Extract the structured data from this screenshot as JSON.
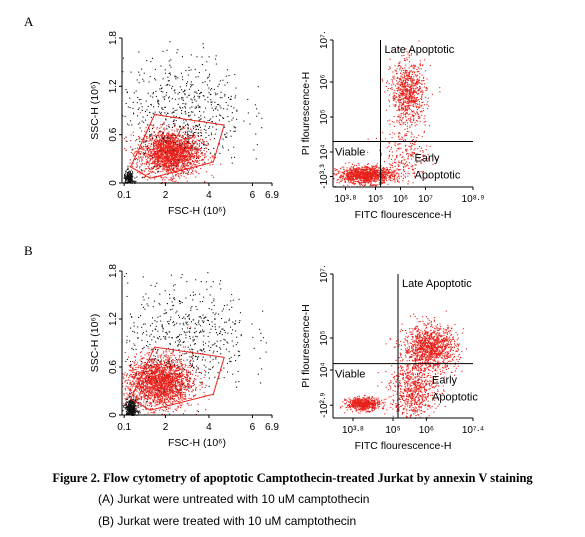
{
  "figure": {
    "caption_title": "Figure 2. Flow cytometry of apoptotic Camptothecin-treated Jurkat by annexin V staining",
    "caption_lines": [
      "(A)  Jurkat were untreated with 10 uM camptothecin",
      "(B)  Jurkat were treated with 10 uM camptothecin"
    ]
  },
  "colors": {
    "events": "#e8211b",
    "gate": "#e8211b",
    "ungated": "#111111",
    "axis": "#000000"
  },
  "chart_data": [
    {
      "panel": "A",
      "type": "scatter",
      "title": "",
      "xlabel": "FSC-H  (10⁶)",
      "ylabel": "SSC-H  (10⁶)",
      "x_ticks": [
        "0.1",
        "2",
        "4",
        "6",
        "6.9"
      ],
      "x_tick_values": [
        0.1,
        2,
        4,
        6,
        6.9
      ],
      "y_ticks": [
        "0",
        "0.6",
        "1.2",
        "1.8"
      ],
      "y_tick_values": [
        0,
        0.6,
        1.2,
        1.8
      ],
      "xlim": [
        0,
        6.9
      ],
      "ylim": [
        0,
        1.8
      ],
      "gate_polygon": [
        [
          0.4,
          0.2
        ],
        [
          1.5,
          0.85
        ],
        [
          4.7,
          0.72
        ],
        [
          4.2,
          0.26
        ],
        [
          1.3,
          0.06
        ]
      ],
      "series": [
        {
          "color": "red",
          "cluster": {
            "x_center": 2.2,
            "y_center": 0.38,
            "x_sd": 0.7,
            "y_sd": 0.14,
            "n": 2200
          }
        },
        {
          "color": "black",
          "cluster": {
            "x_center": 2.8,
            "y_center": 0.9,
            "x_sd": 1.4,
            "y_sd": 0.35,
            "n": 600
          }
        },
        {
          "color": "black",
          "cluster": {
            "x_center": 0.3,
            "y_center": 0.05,
            "x_sd": 0.12,
            "y_sd": 0.05,
            "n": 250
          }
        }
      ]
    },
    {
      "panel": "A",
      "type": "scatter",
      "title": "",
      "xlabel": "FITC flourescence-H",
      "ylabel": "PI flourescence-H",
      "x_ticks": [
        "10³·⁸",
        "10⁵",
        "10⁶",
        "10⁷",
        "10⁸·⁹"
      ],
      "x_tick_values": [
        3.8,
        5,
        6,
        7,
        8.9
      ],
      "y_ticks": [
        "-10³·³",
        "10⁴",
        "10⁵",
        "10⁶",
        "10⁷·"
      ],
      "y_tick_values": [
        3.3,
        4,
        5,
        6,
        7.2
      ],
      "xlim": [
        3.3,
        8.9
      ],
      "ylim": [
        3.0,
        7.2
      ],
      "quadrant_gates": {
        "x": 5.2,
        "y": 4.3
      },
      "quadrant_labels": {
        "upper_right": "Late Apoptotic",
        "lower_left": "Viable",
        "lower_right_line1": "Early",
        "lower_right_line2": "Apoptotic"
      },
      "series": [
        {
          "color": "red",
          "cluster": {
            "x_center": 4.6,
            "y_center": 3.35,
            "x_sd": 0.55,
            "y_sd": 0.12,
            "n": 1200
          }
        },
        {
          "color": "red",
          "cluster": {
            "x_center": 6.3,
            "y_center": 5.7,
            "x_sd": 0.35,
            "y_sd": 0.45,
            "n": 800
          }
        },
        {
          "color": "red",
          "cluster": {
            "x_center": 6.2,
            "y_center": 3.9,
            "x_sd": 0.5,
            "y_sd": 0.4,
            "n": 250
          }
        }
      ]
    },
    {
      "panel": "B",
      "type": "scatter",
      "title": "",
      "xlabel": "FSC-H  (10⁶)",
      "ylabel": "SSC-H  (10⁶)",
      "x_ticks": [
        "0.1",
        "2",
        "4",
        "6",
        "6.9"
      ],
      "x_tick_values": [
        0.1,
        2,
        4,
        6,
        6.9
      ],
      "y_ticks": [
        "0",
        "0.6",
        "1.2",
        "1.8"
      ],
      "y_tick_values": [
        0,
        0.6,
        1.2,
        1.8
      ],
      "xlim": [
        0,
        6.9
      ],
      "ylim": [
        0,
        1.8
      ],
      "gate_polygon": [
        [
          0.4,
          0.2
        ],
        [
          1.5,
          0.85
        ],
        [
          4.7,
          0.72
        ],
        [
          4.2,
          0.26
        ],
        [
          1.3,
          0.06
        ]
      ],
      "series": [
        {
          "color": "red",
          "cluster": {
            "x_center": 1.7,
            "y_center": 0.42,
            "x_sd": 0.75,
            "y_sd": 0.16,
            "n": 2200
          }
        },
        {
          "color": "black",
          "cluster": {
            "x_center": 3.0,
            "y_center": 1.0,
            "x_sd": 1.4,
            "y_sd": 0.35,
            "n": 550
          }
        },
        {
          "color": "black",
          "cluster": {
            "x_center": 0.4,
            "y_center": 0.08,
            "x_sd": 0.15,
            "y_sd": 0.06,
            "n": 400
          }
        }
      ]
    },
    {
      "panel": "B",
      "type": "scatter",
      "title": "",
      "xlabel": "FITC flourescence-H",
      "ylabel": "PI flourescence-H",
      "x_ticks": [
        "10³·⁸",
        "10⁵",
        "10⁶",
        "10⁷·⁴"
      ],
      "x_tick_values": [
        3.8,
        5,
        6,
        7.4
      ],
      "y_ticks": [
        "-10²·⁹",
        "10⁴",
        "10⁵",
        "10⁷·"
      ],
      "y_tick_values": [
        2.9,
        4,
        5,
        7.0
      ],
      "xlim": [
        3.2,
        7.4
      ],
      "ylim": [
        2.5,
        7.0
      ],
      "quadrant_gates": {
        "x": 5.15,
        "y": 4.2
      },
      "quadrant_labels": {
        "upper_right": "Late Apoptotic",
        "lower_left": "Viable",
        "lower_right_line1": "Early",
        "lower_right_line2": "Apoptotic"
      },
      "series": [
        {
          "color": "red",
          "cluster": {
            "x_center": 4.1,
            "y_center": 2.95,
            "x_sd": 0.25,
            "y_sd": 0.1,
            "n": 600
          }
        },
        {
          "color": "red",
          "cluster": {
            "x_center": 6.1,
            "y_center": 4.7,
            "x_sd": 0.4,
            "y_sd": 0.35,
            "n": 1200
          }
        },
        {
          "color": "red",
          "cluster": {
            "x_center": 5.6,
            "y_center": 3.4,
            "x_sd": 0.35,
            "y_sd": 0.45,
            "n": 700
          }
        }
      ]
    }
  ],
  "panel_labels": [
    "A",
    "B"
  ]
}
